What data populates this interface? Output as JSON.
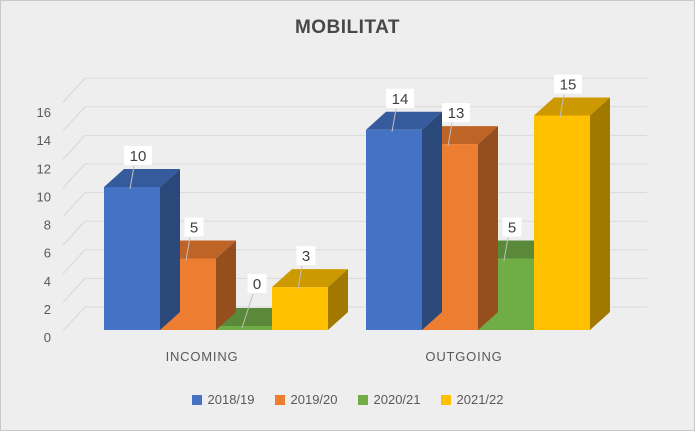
{
  "title": "MOBILITAT",
  "chart_data": {
    "type": "bar",
    "subtype": "3d-clustered-column",
    "title": "MOBILITAT",
    "categories": [
      "INCOMING",
      "OUTGOING"
    ],
    "series": [
      {
        "name": "2018/19",
        "color": "#4472C4",
        "values": [
          10,
          14
        ]
      },
      {
        "name": "2019/20",
        "color": "#ED7D31",
        "values": [
          5,
          13
        ]
      },
      {
        "name": "2020/21",
        "color": "#70AD47",
        "values": [
          0,
          5
        ]
      },
      {
        "name": "2021/22",
        "color": "#FFC000",
        "values": [
          3,
          15
        ]
      }
    ],
    "xlabel": "",
    "ylabel": "",
    "ylim": [
      0,
      16
    ],
    "yticks": [
      0,
      2,
      4,
      6,
      8,
      10,
      12,
      14,
      16
    ],
    "grid": true,
    "legend_position": "bottom",
    "data_labels": true,
    "data_label_values": {
      "INCOMING": [
        10,
        5,
        0,
        3
      ],
      "OUTGOING": [
        14,
        13,
        5,
        15
      ]
    }
  },
  "styles": {
    "background": "#EEEEEE",
    "border_color": "#C9C9C9",
    "grid_color": "#DADADA",
    "axis_text_color": "#595959",
    "data_label_color": "#3F3F3F",
    "data_label_bg": "#FFFFFF",
    "leader_line_color": "#BFBFBF",
    "title_color": "#484848"
  }
}
